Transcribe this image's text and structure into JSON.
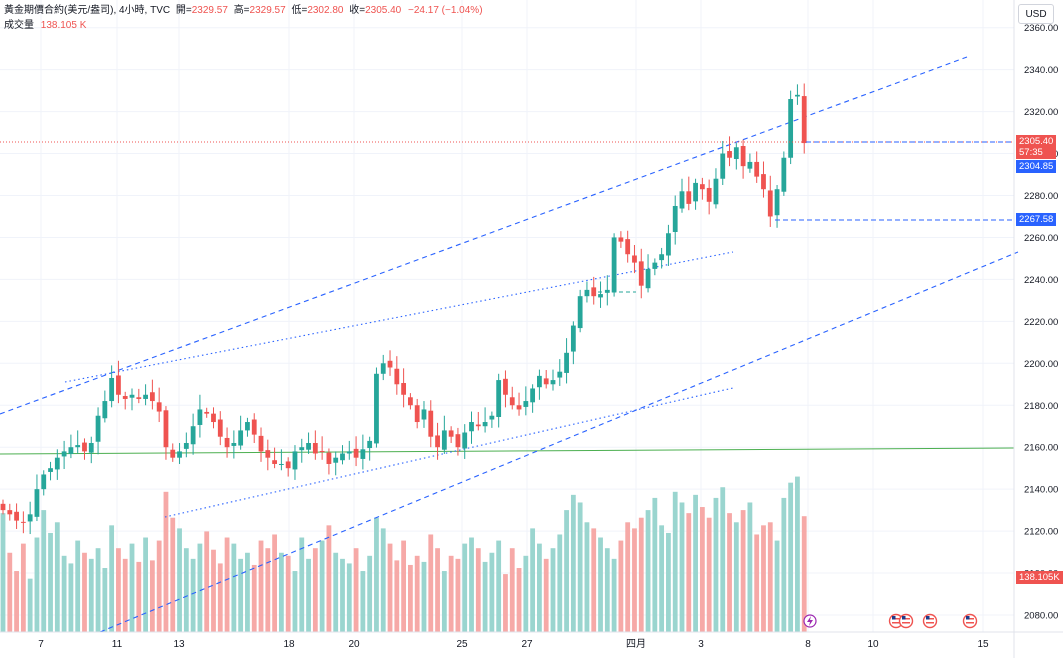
{
  "legend": {
    "symbol": "黃金期價合約(美元/盎司), 4小時, TVC",
    "open_label": "開=",
    "open": "2329.57",
    "high_label": "高=",
    "high": "2329.57",
    "low_label": "低=",
    "low": "2302.80",
    "close_label": "收=",
    "close": "2305.40",
    "change": "−24.17 (−1.04%)",
    "volume_label": "成交量",
    "volume": "138.105 K"
  },
  "currency_button": "USD",
  "price_tags": {
    "last": "2305.40",
    "countdown": "57:35",
    "line1": "2304.85",
    "line2": "2267.58",
    "volume": "138.105K"
  },
  "colors": {
    "up": "#26a69a",
    "down": "#ef5350",
    "up_volume": "#9ad5cf",
    "down_volume": "#f6a9a7",
    "trendline": "#2962ff",
    "horizontal_line": "#4caf50",
    "tag_blue": "#2962ff"
  },
  "icons": [
    "lightning-icon",
    "us-flag-icon",
    "us-flag-icon",
    "us-flag-icon",
    "us-flag-icon"
  ],
  "chart_data": {
    "type": "candlestick",
    "interval": "4h",
    "ylim": [
      2070,
      2370
    ],
    "y_ticks": [
      "2080.00",
      "2100.00",
      "2120.00",
      "2140.00",
      "2160.00",
      "2180.00",
      "2200.00",
      "2220.00",
      "2240.00",
      "2260.00",
      "2280.00",
      "2300.00",
      "2320.00",
      "2340.00",
      "2360.00"
    ],
    "x_ticks": [
      "7",
      "11",
      "13",
      "18",
      "20",
      "25",
      "27",
      "四月",
      "3",
      "8",
      "10",
      "15"
    ],
    "horizontal_line": 2159,
    "closes": [
      2130,
      2128,
      2125,
      2124,
      2128,
      2140,
      2147,
      2150,
      2155,
      2158,
      2160,
      2161,
      2158,
      2162,
      2175,
      2182,
      2193,
      2185,
      2183,
      2185,
      2183,
      2185,
      2182,
      2177,
      2160,
      2155,
      2158,
      2162,
      2170,
      2178,
      2176,
      2172,
      2165,
      2160,
      2162,
      2168,
      2172,
      2166,
      2158,
      2155,
      2152,
      2152,
      2150,
      2158,
      2160,
      2162,
      2157,
      2158,
      2152,
      2155,
      2157,
      2158,
      2155,
      2159,
      2163,
      2195,
      2200,
      2198,
      2190,
      2185,
      2180,
      2172,
      2178,
      2165,
      2160,
      2168,
      2165,
      2160,
      2167,
      2172,
      2170,
      2172,
      2175,
      2192,
      2185,
      2180,
      2178,
      2182,
      2188,
      2194,
      2190,
      2192,
      2196,
      2205,
      2218,
      2232,
      2235,
      2232,
      2233,
      2235,
      2260,
      2258,
      2252,
      2248,
      2237,
      2245,
      2248,
      2252,
      2262,
      2275,
      2282,
      2276,
      2286,
      2283,
      2277,
      2288,
      2300,
      2298,
      2303,
      2294,
      2296,
      2289,
      2283,
      2270,
      2283,
      2298,
      2326,
      2328,
      2305
    ],
    "volumes": [
      78,
      52,
      40,
      58,
      35,
      62,
      80,
      65,
      72,
      50,
      45,
      60,
      52,
      48,
      55,
      42,
      70,
      55,
      48,
      58,
      46,
      62,
      47,
      60,
      92,
      75,
      68,
      55,
      48,
      58,
      66,
      54,
      45,
      62,
      58,
      48,
      52,
      44,
      60,
      55,
      64,
      52,
      50,
      40,
      62,
      48,
      55,
      60,
      70,
      52,
      48,
      45,
      55,
      40,
      50,
      75,
      68,
      58,
      47,
      60,
      44,
      50,
      46,
      64,
      55,
      40,
      50,
      48,
      58,
      62,
      55,
      46,
      52,
      60,
      38,
      55,
      42,
      50,
      68,
      58,
      48,
      55,
      64,
      80,
      90,
      85,
      72,
      68,
      62,
      55,
      48,
      60,
      72,
      68,
      75,
      80,
      88,
      70,
      65,
      92,
      85,
      78,
      90,
      82,
      75,
      88,
      95,
      78,
      72,
      80,
      85,
      64,
      70,
      72,
      60,
      88,
      98,
      102,
      76
    ]
  }
}
